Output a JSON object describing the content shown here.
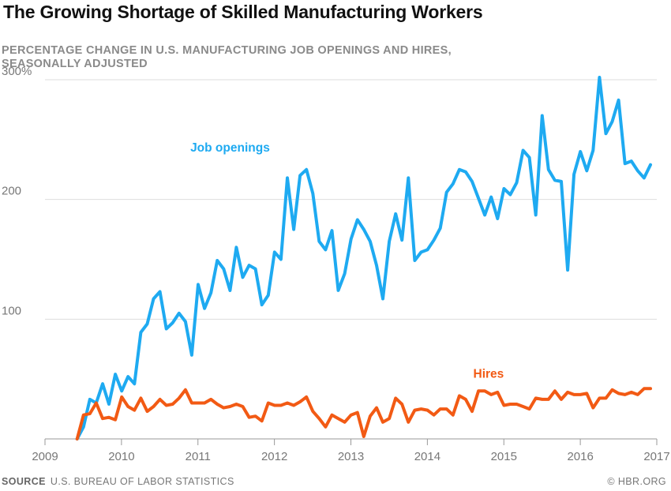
{
  "title": "The Growing Shortage of Skilled Manufacturing Workers",
  "subtitle": "PERCENTAGE CHANGE IN U.S. MANUFACTURING JOB OPENINGS AND HIRES, SEASONALLY ADJUSTED",
  "source_label": "SOURCE",
  "source_text": "U.S. BUREAU OF LABOR STATISTICS",
  "credit": "© HBR.ORG",
  "colors": {
    "openings": "#1eaaf1",
    "hires": "#f25a14",
    "grid": "#dddddd",
    "axis": "#999999"
  },
  "chart_data": {
    "type": "line",
    "title": "The Growing Shortage of Skilled Manufacturing Workers",
    "subtitle": "PERCENTAGE CHANGE IN U.S. MANUFACTURING JOB OPENINGS AND HIRES, SEASONALLY ADJUSTED",
    "xlabel": "",
    "ylabel": "",
    "xlim": [
      2009,
      2017
    ],
    "ylim": [
      0,
      300
    ],
    "grid": true,
    "x_ticks": [
      2009,
      2010,
      2011,
      2012,
      2013,
      2014,
      2015,
      2016,
      2017
    ],
    "x_tick_labels": [
      "2009",
      "2010",
      "2011",
      "2012",
      "2013",
      "2014",
      "2015",
      "2016",
      "2017"
    ],
    "y_ticks": [
      100,
      200,
      300
    ],
    "y_tick_labels": [
      "100",
      "200",
      "300%"
    ],
    "start": 2009.42,
    "step": 0.0833,
    "series": [
      {
        "name": "Job openings",
        "color": "#1eaaf1",
        "label_pos": [
          2010.9,
          240
        ],
        "values": [
          0,
          10,
          33,
          30,
          46,
          29,
          54,
          40,
          52,
          46,
          89,
          96,
          117,
          123,
          92,
          97,
          105,
          98,
          70,
          129,
          109,
          122,
          149,
          142,
          124,
          160,
          135,
          145,
          142,
          112,
          120,
          156,
          150,
          218,
          175,
          220,
          225,
          205,
          165,
          158,
          174,
          124,
          138,
          167,
          183,
          175,
          165,
          145,
          117,
          165,
          188,
          166,
          218,
          149,
          156,
          158,
          166,
          176,
          206,
          213,
          225,
          223,
          215,
          201,
          187,
          202,
          184,
          209,
          204,
          214,
          241,
          235,
          187,
          270,
          225,
          216,
          215,
          141,
          221,
          240,
          224,
          241,
          302,
          255,
          265,
          283,
          230,
          232,
          224,
          218,
          229
        ]
      },
      {
        "name": "Hires",
        "color": "#f25a14",
        "label_pos": [
          2014.6,
          51
        ],
        "values": [
          0,
          20,
          21,
          30,
          17,
          18,
          16,
          35,
          27,
          24,
          34,
          23,
          27,
          33,
          28,
          29,
          34,
          41,
          30,
          30,
          30,
          33,
          29,
          26,
          27,
          29,
          27,
          18,
          19,
          15,
          30,
          28,
          28,
          30,
          28,
          31,
          35,
          23,
          17,
          10,
          20,
          17,
          14,
          20,
          22,
          2,
          19,
          26,
          14,
          17,
          34,
          29,
          14,
          24,
          25,
          24,
          20,
          25,
          25,
          20,
          36,
          33,
          23,
          40,
          40,
          37,
          39,
          28,
          29,
          29,
          27,
          25,
          34,
          33,
          33,
          40,
          33,
          39,
          37,
          37,
          38,
          26,
          34,
          34,
          41,
          38,
          37,
          39,
          37,
          42,
          42
        ]
      }
    ]
  }
}
